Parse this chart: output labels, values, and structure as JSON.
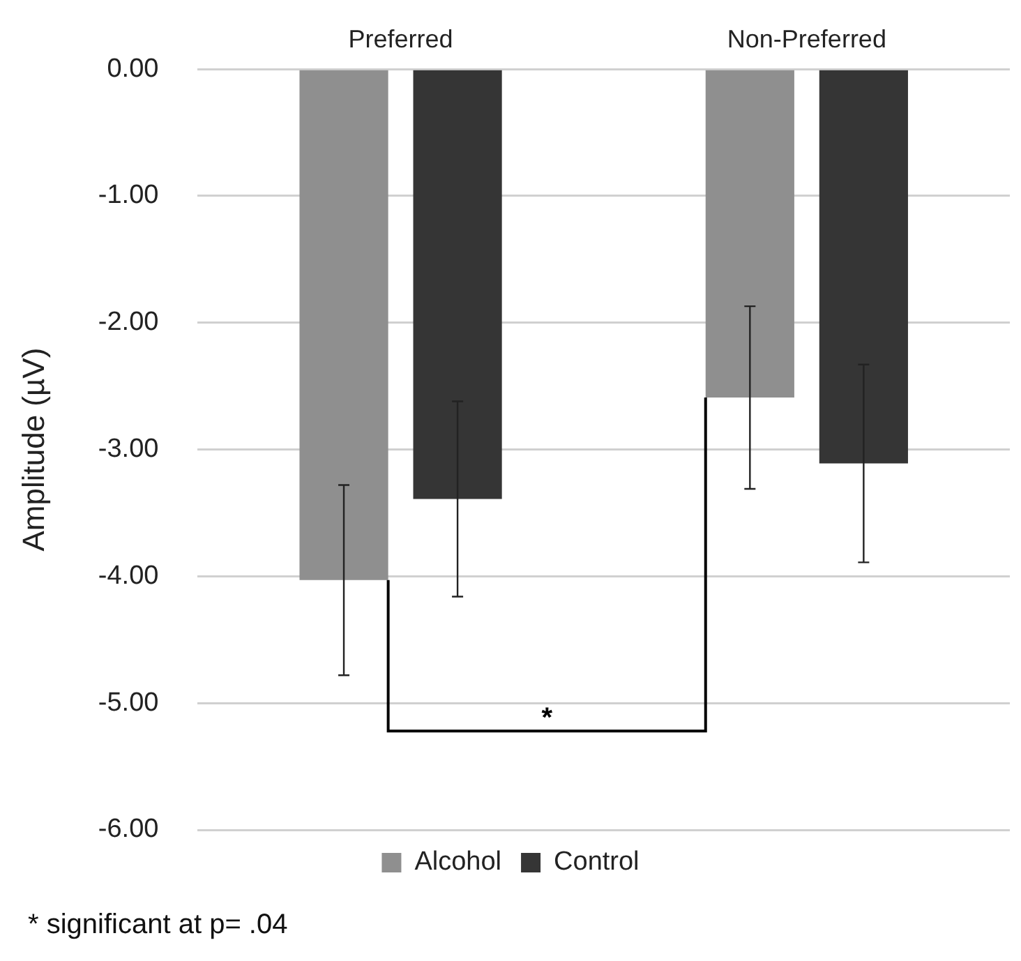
{
  "chart_data": {
    "type": "bar",
    "ylabel": "Amplitude (µV)",
    "categories": [
      "Preferred",
      "Non-Preferred"
    ],
    "series": [
      {
        "name": "Alcohol",
        "color": "#8f8f8f",
        "values": [
          -4.03,
          -2.59
        ],
        "errors": [
          0.75,
          0.72
        ]
      },
      {
        "name": "Control",
        "color": "#353535",
        "values": [
          -3.39,
          -3.11
        ],
        "errors": [
          0.77,
          0.78
        ]
      }
    ],
    "ylim": [
      -6,
      0
    ],
    "yticks": [
      {
        "value": 0,
        "label": "0.00"
      },
      {
        "value": -1,
        "label": "-1.00"
      },
      {
        "value": -2,
        "label": "-2.00"
      },
      {
        "value": -3,
        "label": "-3.00"
      },
      {
        "value": -4,
        "label": "-4.00"
      },
      {
        "value": -5,
        "label": "-5.00"
      },
      {
        "value": -6,
        "label": "-6.00"
      }
    ],
    "grid": "y",
    "legend": "bottom",
    "annotations": [
      "*",
      "* significant at p= .04"
    ]
  }
}
